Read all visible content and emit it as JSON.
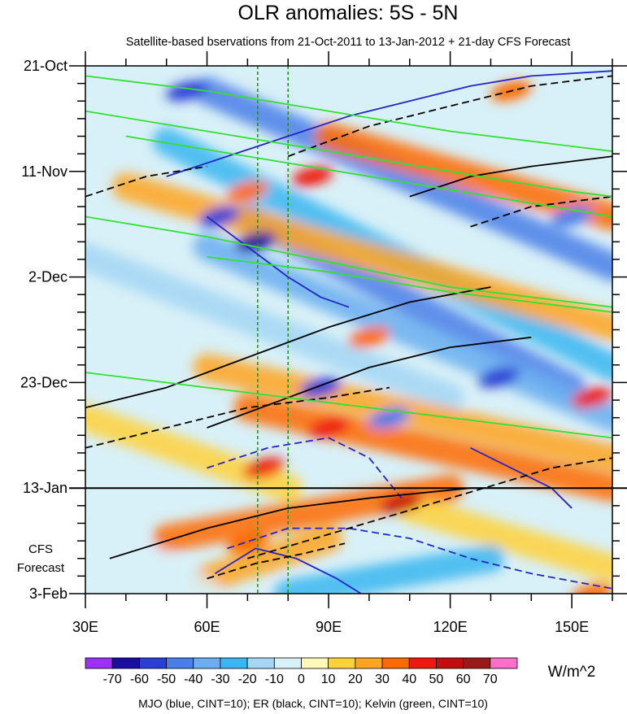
{
  "chart_data": {
    "type": "heatmap",
    "title": "OLR anomalies: 5S - 5N",
    "subtitle": "Satellite-based bservations from 21-Oct-2011 to 13-Jan-2012 + 21-day CFS Forecast",
    "x_axis": {
      "range": [
        30,
        160
      ],
      "unit": "degrees longitude",
      "tick_labels": [
        {
          "value": 30,
          "label": "30E"
        },
        {
          "value": 60,
          "label": "60E"
        },
        {
          "value": 90,
          "label": "90E"
        },
        {
          "value": 120,
          "label": "120E"
        },
        {
          "value": 150,
          "label": "150E"
        }
      ]
    },
    "y_axis": {
      "range_days": [
        0,
        105
      ],
      "unit": "days since 21-Oct-2011",
      "direction": "time increases downward",
      "tick_labels": [
        {
          "day": 0,
          "label": "21-Oct"
        },
        {
          "day": 21,
          "label": "11-Nov"
        },
        {
          "day": 42,
          "label": "2-Dec"
        },
        {
          "day": 63,
          "label": "23-Dec"
        },
        {
          "day": 84,
          "label": "13-Jan"
        },
        {
          "day": 105,
          "label": "3-Feb"
        }
      ]
    },
    "forecast": {
      "start_day": 84,
      "label_line1": "CFS",
      "label_line2": "Forecast"
    },
    "reference_longitudes": [
      72.5,
      80
    ],
    "colorbar": {
      "unit": "W/m^2",
      "levels": [
        -70,
        -60,
        -50,
        -40,
        -30,
        -20,
        -10,
        0,
        10,
        20,
        30,
        40,
        50,
        60,
        70
      ],
      "colors": [
        "#9b30ff",
        "#1a0fa0",
        "#2a3fd6",
        "#4a7fe8",
        "#6aaef0",
        "#3ab7f0",
        "#a4d6f5",
        "#d8f0f7",
        "#fff8b8",
        "#ffd23a",
        "#ffa51e",
        "#ff6a00",
        "#ee1a10",
        "#c40e0e",
        "#9a1a1a",
        "#ff6ec8"
      ]
    },
    "anomaly_bands": [
      {
        "lon0": 60,
        "day0": 5,
        "lon1": 160,
        "day1": 40,
        "value": -45
      },
      {
        "lon0": 50,
        "day0": 15,
        "lon1": 160,
        "day1": 60,
        "value": -25
      },
      {
        "lon0": 70,
        "day0": 30,
        "lon1": 150,
        "day1": 64,
        "value": -50
      },
      {
        "lon0": 60,
        "day0": 36,
        "lon1": 160,
        "day1": 70,
        "value": -35
      },
      {
        "lon0": 30,
        "day0": 38,
        "lon1": 120,
        "day1": 66,
        "value": -20
      },
      {
        "lon0": 90,
        "day0": 14,
        "lon1": 160,
        "day1": 30,
        "value": 30
      },
      {
        "lon0": 40,
        "day0": 24,
        "lon1": 160,
        "day1": 52,
        "value": 20
      },
      {
        "lon0": 70,
        "day0": 68,
        "lon1": 160,
        "day1": 84,
        "value": 35
      },
      {
        "lon0": 60,
        "day0": 60,
        "lon1": 160,
        "day1": 78,
        "value": 25
      },
      {
        "lon0": 30,
        "day0": 70,
        "lon1": 80,
        "day1": 84,
        "value": 15
      },
      {
        "lon0": 50,
        "day0": 94,
        "lon1": 120,
        "day1": 84,
        "value": 30
      },
      {
        "lon0": 60,
        "day0": 102,
        "lon1": 90,
        "day1": 94,
        "value": 25
      },
      {
        "lon0": 110,
        "day0": 88,
        "lon1": 160,
        "day1": 100,
        "value": 15
      },
      {
        "lon0": 80,
        "day0": 105,
        "lon1": 130,
        "day1": 98,
        "value": -25
      },
      {
        "lon0": 30,
        "day0": 90,
        "lon1": 60,
        "day1": 105,
        "value": -5
      }
    ],
    "anomaly_spots": [
      {
        "lon": 72,
        "day": 35,
        "value": -70
      },
      {
        "lon": 63,
        "day": 30,
        "value": -60
      },
      {
        "lon": 55,
        "day": 5,
        "value": -55
      },
      {
        "lon": 88,
        "day": 64,
        "value": -60
      },
      {
        "lon": 132,
        "day": 62,
        "value": -55
      },
      {
        "lon": 150,
        "day": 30,
        "value": -50
      },
      {
        "lon": 105,
        "day": 70,
        "value": -45
      },
      {
        "lon": 86,
        "day": 22,
        "value": 45
      },
      {
        "lon": 70,
        "day": 25,
        "value": 35
      },
      {
        "lon": 108,
        "day": 87,
        "value": 50
      },
      {
        "lon": 90,
        "day": 72,
        "value": 45
      },
      {
        "lon": 74,
        "day": 80,
        "value": 40
      },
      {
        "lon": 155,
        "day": 66,
        "value": 40
      },
      {
        "lon": 135,
        "day": 5,
        "value": 30
      },
      {
        "lon": 155,
        "day": 105,
        "value": 35
      },
      {
        "lon": 70,
        "day": 95,
        "value": 35
      },
      {
        "lon": 100,
        "day": 54,
        "value": 30
      }
    ],
    "filtered_contours": {
      "legend_text": "MJO (blue, CINT=10); ER (black, CINT=10); Kelvin (green, CINT=10)",
      "mjo": {
        "color": "#2424c8",
        "series": [
          {
            "lon": [
              50,
              65,
              80,
              95,
              110,
              125,
              140,
              160
            ],
            "day": [
              22,
              18,
              14,
              10,
              7,
              4,
              2,
              1
            ],
            "style": "solid"
          },
          {
            "lon": [
              60,
              70,
              80,
              88,
              95
            ],
            "day": [
              30,
              36,
              42,
              46,
              48
            ],
            "style": "solid"
          },
          {
            "lon": [
              60,
              75,
              90,
              100,
              108
            ],
            "day": [
              80,
              76,
              74,
              78,
              86
            ],
            "style": "dashed"
          },
          {
            "lon": [
              65,
              80,
              95,
              110,
              125,
              140,
              160
            ],
            "day": [
              96,
              92,
              92,
              94,
              98,
              101,
              104
            ],
            "style": "dashed"
          },
          {
            "lon": [
              62,
              72,
              82,
              92,
              98
            ],
            "day": [
              101,
              96,
              98,
              102,
              105
            ],
            "style": "solid"
          },
          {
            "lon": [
              125,
              135,
              145,
              150
            ],
            "day": [
              76,
              80,
              84,
              88
            ],
            "style": "solid"
          }
        ]
      },
      "er": {
        "color": "#000000",
        "series": [
          {
            "lon": [
              30,
              50,
              70,
              90,
              110,
              130
            ],
            "day": [
              68,
              64,
              58,
              52,
              47,
              44
            ],
            "style": "solid"
          },
          {
            "lon": [
              60,
              80,
              100,
              120,
              140
            ],
            "day": [
              72,
              66,
              60,
              56,
              54
            ],
            "style": "solid"
          },
          {
            "lon": [
              36,
              60,
              80,
              100,
              125,
              145
            ],
            "day": [
              98,
              92,
              88,
              86,
              84,
              84
            ],
            "style": "solid"
          },
          {
            "lon": [
              30,
              50,
              70,
              90,
              105
            ],
            "day": [
              76,
              72,
              68,
              66,
              64
            ],
            "style": "dashed"
          },
          {
            "lon": [
              70,
              95,
              120,
              145,
              160
            ],
            "day": [
              98,
              92,
              86,
              80,
              78
            ],
            "style": "dashed"
          },
          {
            "lon": [
              80,
              100,
              120,
              140,
              160
            ],
            "day": [
              18,
              12,
              8,
              4,
              2
            ],
            "style": "dashed"
          },
          {
            "lon": [
              110,
              125,
              140,
              160
            ],
            "day": [
              26,
              22,
              20,
              18
            ],
            "style": "solid"
          },
          {
            "lon": [
              125,
              140,
              160
            ],
            "day": [
              32,
              28,
              26
            ],
            "style": "dashed"
          },
          {
            "lon": [
              30,
              45,
              60
            ],
            "day": [
              26,
              22,
              20
            ],
            "style": "dashed"
          },
          {
            "lon": [
              60,
              72,
              84,
              94
            ],
            "day": [
              102,
              99,
              97,
              95
            ],
            "style": "dashed"
          }
        ]
      },
      "kelvin": {
        "color": "#33e033",
        "series": [
          {
            "lon": [
              30,
              60,
              90,
              120,
              150,
              160
            ],
            "day": [
              2,
              5,
              9,
              13,
              16,
              17
            ],
            "style": "solid"
          },
          {
            "lon": [
              30,
              60,
              90,
              120,
              150,
              160
            ],
            "day": [
              9,
              13,
              17,
              21,
              25,
              26
            ],
            "style": "solid"
          },
          {
            "lon": [
              30,
              60,
              90,
              120,
              150,
              160
            ],
            "day": [
              30,
              34,
              39,
              44,
              47,
              48
            ],
            "style": "solid"
          },
          {
            "lon": [
              30,
              60,
              90,
              120,
              150,
              160
            ],
            "day": [
              61,
              64,
              67,
              70,
              73,
              74
            ],
            "style": "solid"
          },
          {
            "lon": [
              40,
              70,
              100,
              130,
              160
            ],
            "day": [
              14,
              18,
              22,
              26,
              30
            ],
            "style": "solid"
          },
          {
            "lon": [
              60,
              90,
              120,
              150,
              160
            ],
            "day": [
              38,
              41,
              45,
              48,
              49
            ],
            "style": "solid"
          }
        ]
      }
    }
  }
}
